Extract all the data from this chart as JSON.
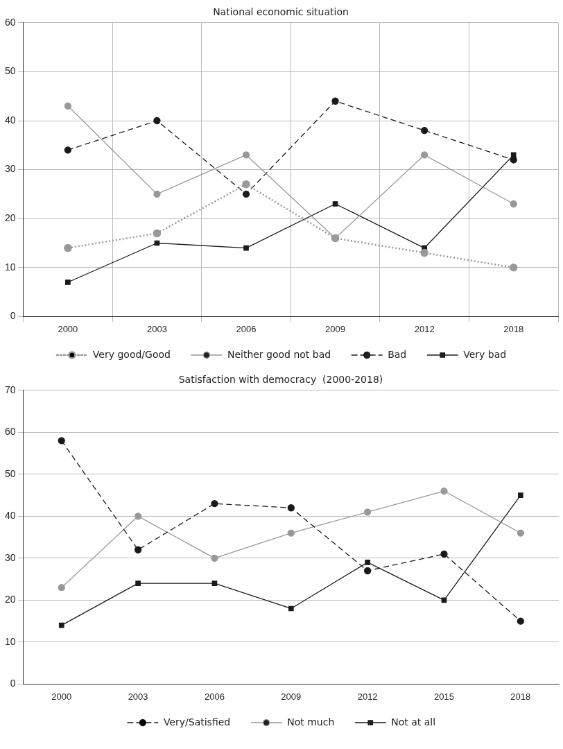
{
  "chart_data": [
    {
      "type": "line",
      "title": "National economic situation",
      "categories": [
        "2000",
        "2003",
        "2006",
        "2009",
        "2012",
        "2018"
      ],
      "ylim": [
        0,
        60
      ],
      "yticks": [
        0,
        10,
        20,
        30,
        40,
        50,
        60
      ],
      "grid": true,
      "legend": "bottom",
      "series": [
        {
          "name": "Very good/Good",
          "color": "#999999",
          "marker": "circle",
          "line_style": "dotted",
          "values": [
            14,
            17,
            27,
            16,
            13,
            10
          ]
        },
        {
          "name": "Neither good not bad",
          "color": "#999999",
          "marker": "circle",
          "line_style": "solid",
          "values": [
            43,
            25,
            33,
            16,
            33,
            23
          ]
        },
        {
          "name": "Bad",
          "color": "#1a1a1a",
          "marker": "circle",
          "line_style": "dashed",
          "values": [
            34,
            40,
            25,
            44,
            38,
            32
          ]
        },
        {
          "name": "Very bad",
          "color": "#1a1a1a",
          "marker": "square",
          "line_style": "solid",
          "values": [
            7,
            15,
            14,
            23,
            14,
            33
          ]
        }
      ]
    },
    {
      "type": "line",
      "title": "Satisfaction with democracy  (2000-2018)",
      "categories": [
        "2000",
        "2003",
        "2006",
        "2009",
        "2012",
        "2015",
        "2018"
      ],
      "ylim": [
        0,
        70
      ],
      "yticks": [
        0,
        10,
        20,
        30,
        40,
        50,
        60,
        70
      ],
      "grid": "y",
      "legend": "bottom",
      "series": [
        {
          "name": "Very/Satisfied",
          "color": "#1a1a1a",
          "marker": "circle",
          "line_style": "dashed",
          "values": [
            58,
            32,
            43,
            42,
            27,
            31,
            15
          ]
        },
        {
          "name": "Not much",
          "color": "#999999",
          "marker": "circle",
          "line_style": "solid",
          "values": [
            23,
            40,
            30,
            36,
            41,
            46,
            36
          ]
        },
        {
          "name": "Not at all",
          "color": "#1a1a1a",
          "marker": "square",
          "line_style": "solid",
          "values": [
            14,
            24,
            24,
            18,
            29,
            20,
            45
          ]
        }
      ]
    }
  ]
}
